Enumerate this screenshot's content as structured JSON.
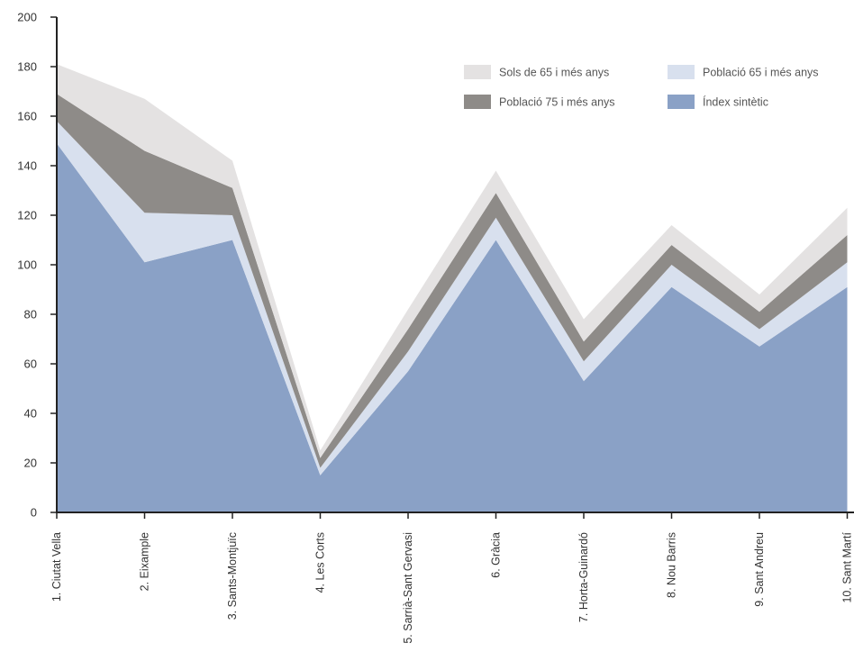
{
  "chart_data": {
    "type": "area",
    "stacked": true,
    "categories": [
      "1. Ciutat Vella",
      "2. Eixample",
      "3. Sants-Montjuïc",
      "4. Les Corts",
      "5. Sarrià-Sant Gervasi",
      "6. Gràcia",
      "7. Horta-Guinardó",
      "8. Nou Barris",
      "9. Sant Andreu",
      "10. Sant Martí"
    ],
    "y_ticks": [
      "0",
      "20",
      "40",
      "60",
      "80",
      "100",
      "120",
      "140",
      "160",
      "180",
      "200"
    ],
    "ylim": [
      0,
      200
    ],
    "legend_position": "top-right",
    "series": [
      {
        "name": "Índex sintètic",
        "color": "#8aa1c6",
        "values": [
          149,
          101,
          110,
          15,
          57,
          110,
          53,
          91,
          67,
          91
        ]
      },
      {
        "name": "Població 65 i més anys",
        "color": "#d8e0ee",
        "values": [
          9,
          20,
          10,
          3,
          8,
          9,
          8,
          9,
          7,
          10
        ]
      },
      {
        "name": "Població 75 i més anys",
        "color": "#8e8b88",
        "values": [
          11,
          25,
          11,
          4,
          9,
          10,
          8,
          8,
          7,
          11
        ]
      },
      {
        "name": "Sols de 65 i més anys",
        "color": "#e4e2e2",
        "values": [
          12,
          21,
          11,
          3,
          8,
          9,
          9,
          8,
          7,
          11
        ]
      }
    ],
    "legend": [
      {
        "label": "Sols de 65 i més anys",
        "color": "#e4e2e2"
      },
      {
        "label": "Població 65 i més anys",
        "color": "#d8e0ee"
      },
      {
        "label": "Població 75 i més anys",
        "color": "#8e8b88"
      },
      {
        "label": "Índex sintètic",
        "color": "#8aa1c6"
      }
    ]
  }
}
